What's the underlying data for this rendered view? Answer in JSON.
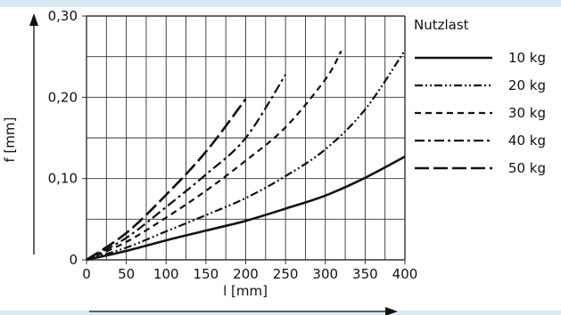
{
  "colors": {
    "background": "#ffffff",
    "ink": "#111111",
    "accent_bar": "#d7eaf6",
    "grid": "#333333"
  },
  "chart_data": {
    "type": "line",
    "title": "",
    "xlabel": "l [mm]",
    "ylabel": "f [mm]",
    "xlim": [
      0,
      400
    ],
    "ylim": [
      0,
      0.3
    ],
    "x_ticks": [
      0,
      50,
      100,
      150,
      200,
      250,
      300,
      350,
      400
    ],
    "x_tick_labels": [
      "0",
      "50",
      "100",
      "150",
      "200",
      "250",
      "300",
      "350",
      "400"
    ],
    "y_ticks": [
      0,
      0.1,
      0.2,
      0.3
    ],
    "y_tick_labels": [
      "0",
      "0,10",
      "0,20",
      "0,30"
    ],
    "grid": true,
    "legend_title": "Nutzlast",
    "legend_position": "right",
    "series": [
      {
        "name": "10 kg",
        "dash": "solid",
        "x": [
          0,
          50,
          100,
          150,
          200,
          250,
          300,
          350,
          400
        ],
        "y": [
          0,
          0.011,
          0.024,
          0.036,
          0.048,
          0.063,
          0.079,
          0.101,
          0.127
        ]
      },
      {
        "name": "20 kg",
        "dash": "dash-dot-dot",
        "x": [
          0,
          50,
          100,
          150,
          200,
          250,
          300,
          350,
          400
        ],
        "y": [
          0,
          0.015,
          0.035,
          0.055,
          0.076,
          0.103,
          0.136,
          0.185,
          0.258
        ]
      },
      {
        "name": "30 kg",
        "dash": "short-dash",
        "x": [
          0,
          50,
          100,
          150,
          200,
          250,
          300,
          320
        ],
        "y": [
          0,
          0.022,
          0.052,
          0.085,
          0.122,
          0.163,
          0.222,
          0.257
        ]
      },
      {
        "name": "40 kg",
        "dash": "dash-dot",
        "x": [
          0,
          50,
          100,
          150,
          200,
          250
        ],
        "y": [
          0,
          0.027,
          0.065,
          0.105,
          0.15,
          0.228
        ]
      },
      {
        "name": "50 kg",
        "dash": "long-dash",
        "x": [
          0,
          50,
          100,
          150,
          200
        ],
        "y": [
          0,
          0.033,
          0.08,
          0.133,
          0.198
        ]
      }
    ]
  }
}
